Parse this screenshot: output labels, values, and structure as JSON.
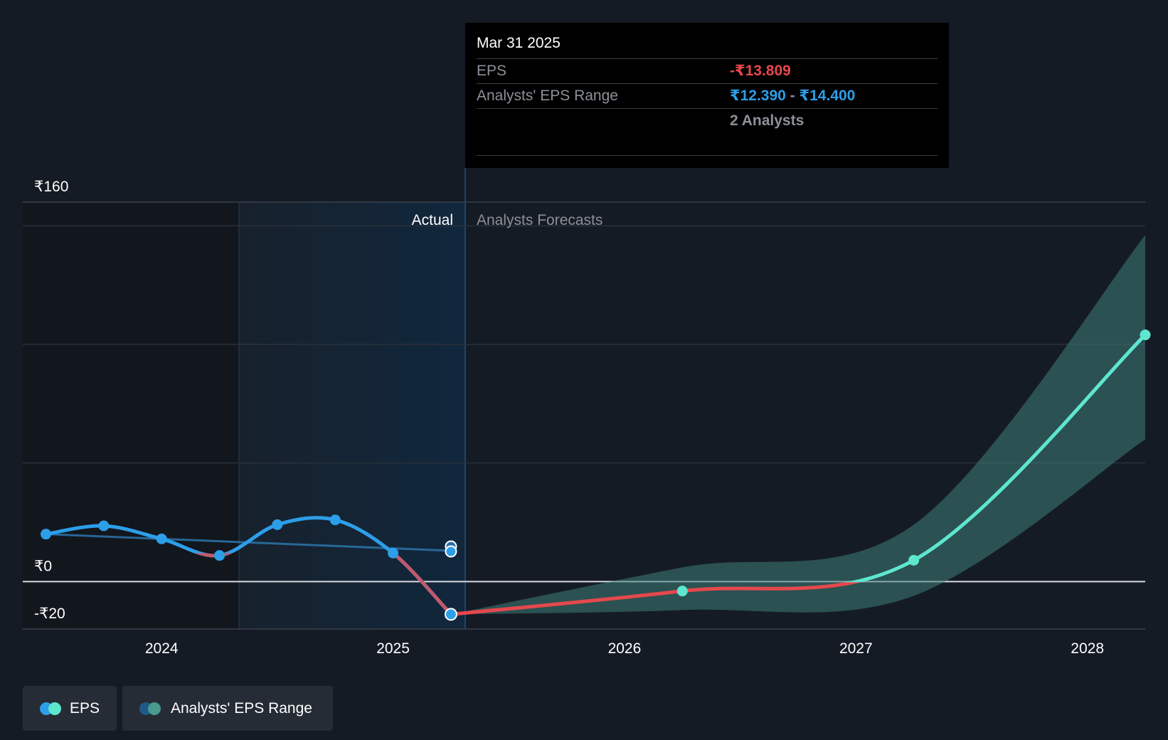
{
  "tooltip": {
    "date": "Mar 31 2025",
    "eps_label": "EPS",
    "eps_value": "-₹13.809",
    "range_label": "Analysts' EPS Range",
    "range_low": "₹12.390",
    "range_sep": " - ",
    "range_high": "₹14.400",
    "analysts": "2 Analysts"
  },
  "sections": {
    "actual": "Actual",
    "forecast": "Analysts Forecasts"
  },
  "legend": [
    {
      "label": "EPS",
      "colors": [
        "#2d9ee8",
        "#5ee6cf"
      ]
    },
    {
      "label": "Analysts' EPS Range",
      "colors": [
        "#1d5b86",
        "#4a9a8d"
      ]
    }
  ],
  "colors": {
    "eps_actual": "#2d9ee8",
    "eps_negative": "#e5484d",
    "eps_forecast": "#5ee6cf",
    "range_band": "#3e7e78"
  },
  "chart_data": {
    "type": "line",
    "title": "",
    "xlabel": "",
    "ylabel": "",
    "ytick_labels": [
      "₹160",
      "₹0",
      "-₹20"
    ],
    "ylim": [
      -20,
      160
    ],
    "xtick_labels": [
      "2024",
      "2025",
      "2026",
      "2027",
      "2028"
    ],
    "xticks": [
      2024,
      2025,
      2026,
      2027,
      2028
    ],
    "xlim": [
      2023.4,
      2028.25
    ],
    "series": [
      {
        "name": "EPS",
        "x": [
          2023.5,
          2023.75,
          2024.0,
          2024.25,
          2024.5,
          2024.75,
          2025.0,
          2025.25
        ],
        "y": [
          20,
          23.5,
          18,
          11,
          24,
          26,
          12,
          -13.809
        ]
      },
      {
        "name": "EPS",
        "x": [
          2025.25,
          2026.25,
          2027.25,
          2028.25
        ],
        "y": [
          -13.809,
          -4,
          9,
          104
        ]
      },
      {
        "name": "Analysts' EPS Range",
        "x": [
          2023.5,
          2025.25
        ],
        "y": [
          20,
          13
        ]
      }
    ],
    "range_band": {
      "x": [
        2025.25,
        2026.25,
        2027.25,
        2028.25
      ],
      "low": [
        -13.809,
        -12,
        -6,
        60
      ],
      "high": [
        -13.809,
        6,
        24,
        146
      ]
    },
    "highlight_x": 2025.25,
    "legend_position": "bottom-left"
  }
}
